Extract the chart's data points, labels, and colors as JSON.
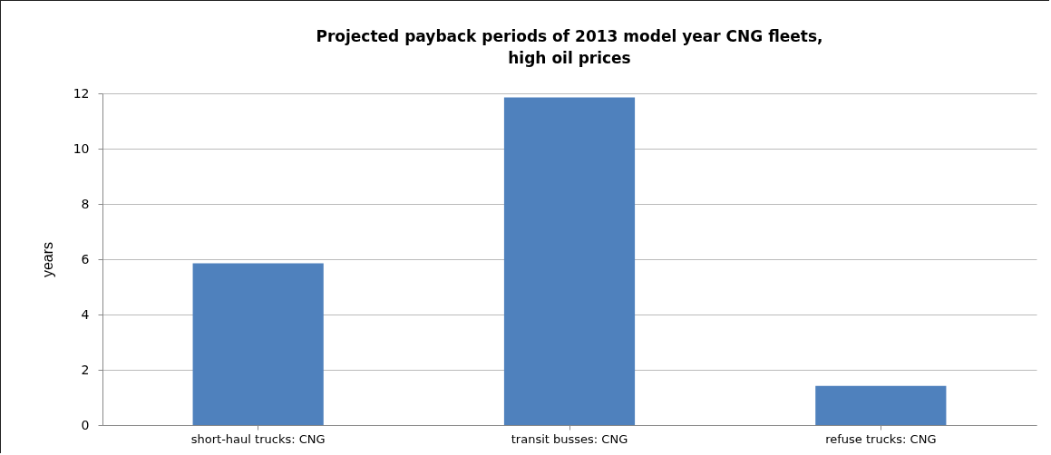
{
  "chart_data": {
    "type": "bar",
    "title": "Projected payback periods of 2013 model year CNG fleets, high oil prices",
    "ylabel": "years",
    "categories": [
      "short-haul trucks: CNG",
      "transit busses: CNG",
      "refuse trucks: CNG"
    ],
    "values": [
      5.85,
      11.85,
      1.42
    ],
    "color": "#4f81bd",
    "ylim": [
      0,
      12
    ],
    "yticks": [
      0,
      2,
      4,
      6,
      8,
      10,
      12
    ],
    "grid": "y"
  }
}
